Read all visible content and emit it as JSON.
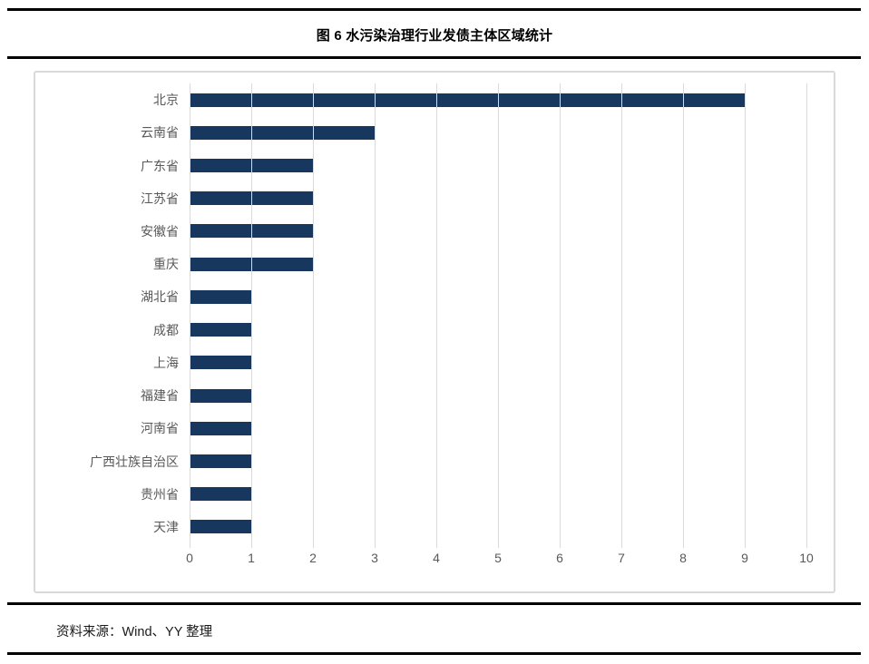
{
  "figure": {
    "title": "图 6 水污染治理行业发债主体区域统计",
    "source_note": "资料来源：Wind、YY 整理"
  },
  "chart_data": {
    "type": "bar",
    "orientation": "horizontal",
    "title": "图 6 水污染治理行业发债主体区域统计",
    "categories": [
      "北京",
      "云南省",
      "广东省",
      "江苏省",
      "安徽省",
      "重庆",
      "湖北省",
      "成都",
      "上海",
      "福建省",
      "河南省",
      "广西壮族自治区",
      "贵州省",
      "天津"
    ],
    "values": [
      9,
      3,
      2,
      2,
      2,
      2,
      1,
      1,
      1,
      1,
      1,
      1,
      1,
      1
    ],
    "xlabel": "",
    "ylabel": "",
    "xlim": [
      0,
      10
    ],
    "xticks": [
      0,
      1,
      2,
      3,
      4,
      5,
      6,
      7,
      8,
      9,
      10
    ],
    "grid": "vertical-only",
    "legend": "none"
  },
  "colors": {
    "bar": "#17375e",
    "gridline": "#d9d9d9",
    "chart_border": "#d9d9d9",
    "axis_text": "#595959",
    "title_text": "#000000",
    "rule": "#000000"
  }
}
